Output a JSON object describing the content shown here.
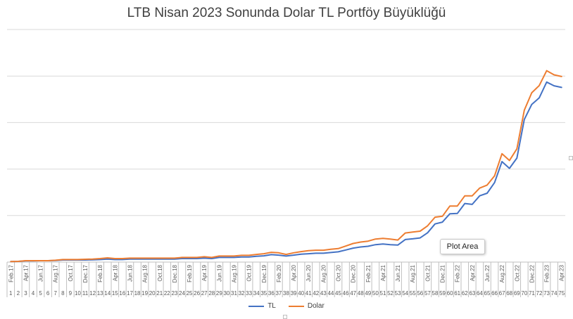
{
  "title": "LTB Nisan 2023 Sonunda Dolar TL Portföy Büyüklüğü",
  "tooltip": "Plot Area",
  "colors": {
    "tl": "#4472C4",
    "dolar": "#ED7D31",
    "grid": "#d9d9d9",
    "axis": "#bfbfbf",
    "text": "#595959"
  },
  "legend": [
    {
      "name": "TL",
      "color": "#4472C4"
    },
    {
      "name": "Dolar",
      "color": "#ED7D31"
    }
  ],
  "chart_data": {
    "type": "line",
    "title": "LTB Nisan 2023 Sonunda Dolar TL Portföy Büyüklüğü",
    "xlabel": "",
    "ylabel": "",
    "grid": true,
    "legend_position": "bottom",
    "ylim": [
      0,
      100
    ],
    "date_labels": [
      "Feb.17",
      "Apr.17",
      "Jun.17",
      "Aug.17",
      "Oct.17",
      "Dec.17",
      "Feb.18",
      "Apr.18",
      "Jun.18",
      "Aug.18",
      "Oct.18",
      "Dec.18",
      "Feb.19",
      "Apr.19",
      "Jun.19",
      "Aug.19",
      "Oct.19",
      "Dec.19",
      "Feb.20",
      "Apr.20",
      "Jun.20",
      "Aug.20",
      "Oct.20",
      "Dec.20",
      "Feb.21",
      "Apr.21",
      "Jun.21",
      "Aug.21",
      "Oct.21",
      "Dec.21",
      "Feb.22",
      "Apr.22",
      "Jun.22",
      "Aug.22",
      "Oct.22",
      "Dec.22",
      "Feb.23",
      "Apr.23"
    ],
    "x": [
      1,
      2,
      3,
      4,
      5,
      6,
      7,
      8,
      9,
      10,
      11,
      12,
      13,
      14,
      15,
      16,
      17,
      18,
      19,
      20,
      21,
      22,
      23,
      24,
      25,
      26,
      27,
      28,
      29,
      30,
      31,
      32,
      33,
      34,
      35,
      36,
      37,
      38,
      39,
      40,
      41,
      42,
      43,
      44,
      45,
      46,
      47,
      48,
      49,
      50,
      51,
      52,
      53,
      54,
      55,
      56,
      57,
      58,
      59,
      60,
      61,
      62,
      63,
      64,
      65,
      66,
      67,
      68,
      69,
      70,
      71,
      72,
      73,
      74,
      75
    ],
    "series": [
      {
        "name": "TL",
        "values": [
          0.2,
          0.3,
          0.5,
          0.5,
          0.6,
          0.6,
          0.7,
          0.9,
          0.9,
          0.9,
          0.9,
          1.0,
          1.1,
          1.3,
          1.1,
          1.1,
          1.3,
          1.3,
          1.3,
          1.3,
          1.3,
          1.3,
          1.3,
          1.5,
          1.5,
          1.5,
          1.7,
          1.5,
          2.0,
          2.0,
          2.0,
          2.2,
          2.2,
          2.5,
          2.7,
          3.2,
          3.0,
          2.6,
          3.0,
          3.4,
          3.6,
          3.8,
          3.8,
          4.1,
          4.4,
          5.2,
          6.0,
          6.5,
          6.8,
          7.5,
          7.8,
          7.5,
          7.3,
          9.7,
          10.0,
          10.4,
          12.6,
          16.4,
          17.2,
          20.8,
          20.9,
          25.2,
          24.8,
          28.5,
          29.6,
          34.2,
          43.2,
          40.3,
          44.7,
          61.3,
          67.8,
          70.6,
          77.4,
          75.8,
          75.1
        ]
      },
      {
        "name": "Dolar",
        "values": [
          0.2,
          0.3,
          0.6,
          0.6,
          0.6,
          0.6,
          0.8,
          1.1,
          1.1,
          1.1,
          1.2,
          1.3,
          1.5,
          1.8,
          1.5,
          1.5,
          1.7,
          1.7,
          1.7,
          1.7,
          1.7,
          1.7,
          1.7,
          2.0,
          2.0,
          2.0,
          2.3,
          2.0,
          2.6,
          2.6,
          2.6,
          2.9,
          2.9,
          3.3,
          3.6,
          4.2,
          4.0,
          3.3,
          4.0,
          4.5,
          4.9,
          5.1,
          5.1,
          5.5,
          5.8,
          6.9,
          8.0,
          8.6,
          9.0,
          9.9,
          10.2,
          9.9,
          9.5,
          12.5,
          12.9,
          13.3,
          15.6,
          19.3,
          19.7,
          24.1,
          24.1,
          28.5,
          28.5,
          31.8,
          33.1,
          37.1,
          46.6,
          43.7,
          48.7,
          65.3,
          72.8,
          75.9,
          82.3,
          80.5,
          79.8
        ]
      }
    ]
  }
}
